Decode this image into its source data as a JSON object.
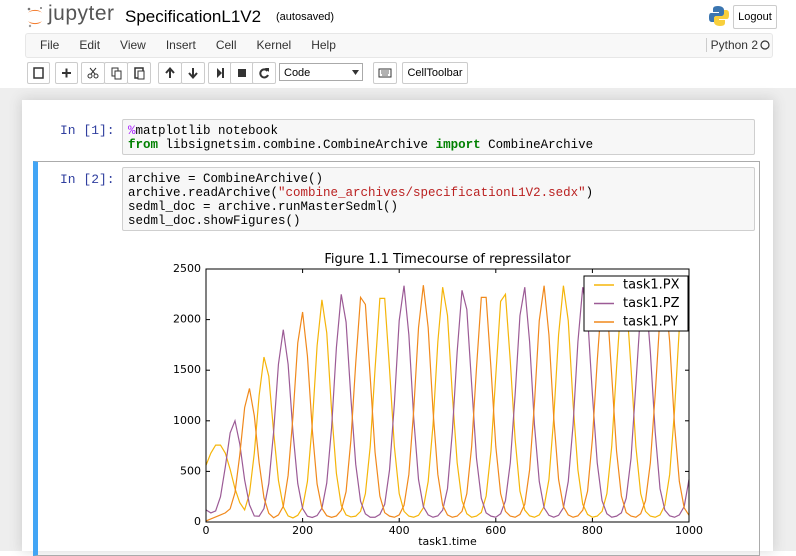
{
  "header": {
    "logo_text": "jupyter",
    "notebook_name": "SpecificationL1V2",
    "save_status": "(autosaved)",
    "logout": "Logout"
  },
  "menu": {
    "items": [
      "File",
      "Edit",
      "View",
      "Insert",
      "Cell",
      "Kernel",
      "Help"
    ],
    "kernel": "Python 2"
  },
  "toolbar": {
    "cell_type": "Code",
    "cell_toolbar": "CellToolbar"
  },
  "cells": [
    {
      "prompt": "In [1]:",
      "lines": [
        [
          {
            "text": "%",
            "style": "magic"
          },
          {
            "text": "matplotlib notebook",
            "style": "plain"
          }
        ],
        [
          {
            "text": "from",
            "style": "keyword"
          },
          {
            "text": " libsignetsim.combine.CombineArchive ",
            "style": "plain"
          },
          {
            "text": "import",
            "style": "keyword"
          },
          {
            "text": " CombineArchive",
            "style": "plain"
          }
        ]
      ]
    },
    {
      "prompt": "In [2]:",
      "lines": [
        [
          {
            "text": "archive = CombineArchive()",
            "style": "plain"
          }
        ],
        [
          {
            "text": "archive.readArchive(",
            "style": "plain"
          },
          {
            "text": "\"combine_archives/specificationL1V2.sedx\"",
            "style": "string"
          },
          {
            "text": ")",
            "style": "plain"
          }
        ],
        [
          {
            "text": "sedml_doc = archive.runMasterSedml()",
            "style": "plain"
          }
        ],
        [
          {
            "text": "sedml_doc.showFigures()",
            "style": "plain"
          }
        ]
      ]
    }
  ],
  "chart_data": {
    "type": "line",
    "title": "Figure 1.1 Timecourse of repressilator",
    "x_label": "task1.time",
    "xlim": [
      0,
      1000
    ],
    "ylim": [
      0,
      2500
    ],
    "xticks": [
      0,
      200,
      400,
      600,
      800,
      1000
    ],
    "yticks": [
      0,
      500,
      1000,
      1500,
      2000,
      2500
    ],
    "grid": false,
    "legend": "upper right",
    "x": [
      0,
      10,
      20,
      30,
      40,
      50,
      60,
      70,
      80,
      90,
      100,
      110,
      120,
      130,
      140,
      150,
      160,
      170,
      180,
      190,
      200,
      210,
      220,
      230,
      240,
      250,
      260,
      270,
      280,
      290,
      300,
      310,
      320,
      330,
      340,
      350,
      360,
      370,
      380,
      390,
      400,
      410,
      420,
      430,
      440,
      450,
      460,
      470,
      480,
      490,
      500,
      510,
      520,
      530,
      540,
      550,
      560,
      570,
      580,
      590,
      600,
      610,
      620,
      630,
      640,
      650,
      660,
      670,
      680,
      690,
      700,
      710,
      720,
      730,
      740,
      750,
      760,
      770,
      780,
      790,
      800,
      810,
      820,
      830,
      840,
      850,
      860,
      870,
      880,
      890,
      900,
      910,
      920,
      930,
      940,
      950,
      960,
      970,
      980,
      990,
      1000
    ],
    "series": [
      {
        "name": "task1.PX",
        "color": "#f5b50a",
        "values": [
          560,
          680,
          760,
          760,
          680,
          520,
          330,
          190,
          120,
          280,
          680,
          1250,
          1630,
          1440,
          890,
          410,
          150,
          60,
          40,
          66,
          143,
          400,
          970,
          1740,
          2195,
          1870,
          1100,
          480,
          165,
          70,
          50,
          58,
          105,
          280,
          745,
          1510,
          2210,
          2210,
          1510,
          745,
          280,
          105,
          58,
          47,
          66,
          140,
          400,
          960,
          1780,
          2320,
          2040,
          1260,
          585,
          210,
          82,
          47,
          58,
          94,
          257,
          700,
          1450,
          2180,
          2250,
          1590,
          820,
          305,
          117,
          61,
          47,
          70,
          152,
          420,
          1030,
          1850,
          2335,
          1990,
          1170,
          515,
          175,
          75,
          47,
          58,
          105,
          280,
          745,
          1520,
          2220,
          2220,
          1520,
          745,
          280,
          105,
          58,
          47,
          70,
          165,
          470,
          1100,
          1920,
          2340,
          1920
        ]
      },
      {
        "name": "task1.PZ",
        "color": "#9c5b96",
        "values": [
          120,
          90,
          110,
          250,
          545,
          880,
          1000,
          770,
          415,
          170,
          60,
          57,
          133,
          380,
          890,
          1560,
          1900,
          1560,
          890,
          380,
          133,
          57,
          45,
          64,
          136,
          385,
          930,
          1725,
          2250,
          1975,
          1225,
          570,
          205,
          80,
          47,
          47,
          75,
          175,
          515,
          1170,
          1990,
          2335,
          1850,
          1030,
          420,
          152,
          70,
          47,
          61,
          117,
          330,
          890,
          1680,
          2290,
          2100,
          1360,
          630,
          235,
          90,
          58,
          47,
          82,
          210,
          585,
          1260,
          2040,
          2320,
          1780,
          960,
          400,
          140,
          66,
          47,
          66,
          140,
          400,
          960,
          1780,
          2320,
          2040,
          1260,
          585,
          210,
          82,
          47,
          58,
          90,
          235,
          630,
          1360,
          2100,
          2290,
          1680,
          890,
          330,
          117,
          61,
          47,
          70,
          152,
          420
        ]
      },
      {
        "name": "task1.PY",
        "color": "#f0891c",
        "values": [
          10,
          30,
          50,
          70,
          90,
          130,
          290,
          665,
          1130,
          1320,
          1050,
          585,
          240,
          86,
          42,
          70,
          155,
          460,
          1040,
          1770,
          2075,
          1640,
          915,
          375,
          135,
          62,
          46,
          60,
          115,
          300,
          810,
          1570,
          2220,
          2150,
          1430,
          690,
          255,
          92,
          58,
          47,
          70,
          165,
          470,
          1100,
          1920,
          2340,
          1920,
          1100,
          470,
          165,
          70,
          47,
          58,
          105,
          280,
          745,
          1520,
          2220,
          2220,
          1520,
          745,
          280,
          105,
          58,
          47,
          75,
          175,
          515,
          1170,
          1990,
          2335,
          1850,
          1030,
          420,
          152,
          70,
          47,
          61,
          117,
          305,
          820,
          1590,
          2250,
          2180,
          1450,
          700,
          257,
          94,
          58,
          47,
          82,
          210,
          585,
          1260,
          2040,
          2320,
          1780,
          960,
          400,
          140,
          66
        ]
      }
    ]
  }
}
